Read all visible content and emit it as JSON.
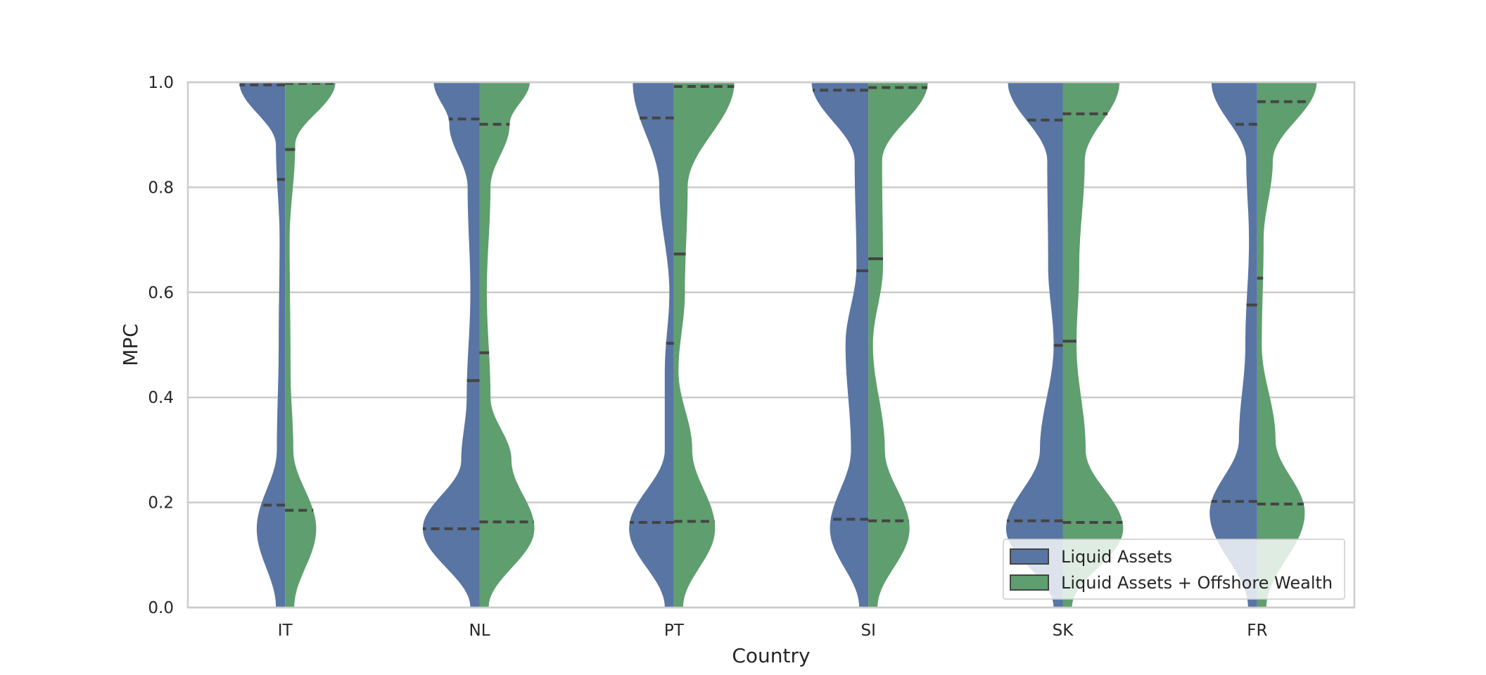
{
  "chart_data": {
    "type": "violin",
    "split": true,
    "title": "",
    "xlabel": "Country",
    "ylabel": "MPC",
    "ylim": [
      0.0,
      1.0
    ],
    "yticks": [
      "0.0",
      "0.2",
      "0.4",
      "0.6",
      "0.8",
      "1.0"
    ],
    "grid": true,
    "legend_position": "lower-right",
    "categories": [
      "IT",
      "NL",
      "PT",
      "SI",
      "SK",
      "FR"
    ],
    "series": [
      {
        "name": "Liquid Assets",
        "color": "#5875a4",
        "quartiles": [
          [
            0.195,
            0.815,
            0.995
          ],
          [
            0.15,
            0.432,
            0.93
          ],
          [
            0.162,
            0.503,
            0.932
          ],
          [
            0.168,
            0.641,
            0.985
          ],
          [
            0.165,
            0.499,
            0.928
          ],
          [
            0.202,
            0.576,
            0.92
          ]
        ],
        "density_peaks": [
          [
            [
              0.0,
              0.1
            ],
            [
              0.15,
              0.31
            ],
            [
              0.3,
              0.09
            ],
            [
              0.5,
              0.07
            ],
            [
              0.7,
              0.06
            ],
            [
              0.88,
              0.1
            ],
            [
              1.0,
              0.5
            ]
          ],
          [
            [
              0.0,
              0.1
            ],
            [
              0.15,
              0.62
            ],
            [
              0.28,
              0.2
            ],
            [
              0.4,
              0.14
            ],
            [
              0.6,
              0.1
            ],
            [
              0.8,
              0.13
            ],
            [
              0.92,
              0.33
            ],
            [
              1.0,
              0.5
            ]
          ],
          [
            [
              0.0,
              0.1
            ],
            [
              0.15,
              0.49
            ],
            [
              0.3,
              0.1
            ],
            [
              0.45,
              0.1
            ],
            [
              0.6,
              0.05
            ],
            [
              0.8,
              0.16
            ],
            [
              1.0,
              0.45
            ]
          ],
          [
            [
              0.0,
              0.1
            ],
            [
              0.15,
              0.42
            ],
            [
              0.3,
              0.19
            ],
            [
              0.5,
              0.25
            ],
            [
              0.65,
              0.13
            ],
            [
              0.85,
              0.15
            ],
            [
              1.0,
              0.62
            ]
          ],
          [
            [
              0.0,
              0.1
            ],
            [
              0.15,
              0.62
            ],
            [
              0.3,
              0.25
            ],
            [
              0.5,
              0.1
            ],
            [
              0.65,
              0.16
            ],
            [
              0.85,
              0.17
            ],
            [
              1.0,
              0.6
            ]
          ],
          [
            [
              0.0,
              0.1
            ],
            [
              0.18,
              0.52
            ],
            [
              0.32,
              0.2
            ],
            [
              0.5,
              0.13
            ],
            [
              0.7,
              0.09
            ],
            [
              0.85,
              0.12
            ],
            [
              1.0,
              0.5
            ]
          ]
        ]
      },
      {
        "name": "Liquid Assets + Offshore Wealth",
        "color": "#5f9e6e",
        "quartiles": [
          [
            0.185,
            0.872,
            0.998
          ],
          [
            0.163,
            0.485,
            0.92
          ],
          [
            0.164,
            0.673,
            0.992
          ],
          [
            0.165,
            0.664,
            0.99
          ],
          [
            0.162,
            0.507,
            0.94
          ],
          [
            0.197,
            0.627,
            0.963
          ]
        ],
        "density_peaks": [
          [
            [
              0.0,
              0.1
            ],
            [
              0.15,
              0.34
            ],
            [
              0.3,
              0.09
            ],
            [
              0.45,
              0.06
            ],
            [
              0.7,
              0.05
            ],
            [
              0.88,
              0.11
            ],
            [
              1.0,
              0.55
            ]
          ],
          [
            [
              0.0,
              0.1
            ],
            [
              0.15,
              0.6
            ],
            [
              0.28,
              0.35
            ],
            [
              0.4,
              0.12
            ],
            [
              0.6,
              0.08
            ],
            [
              0.8,
              0.12
            ],
            [
              0.92,
              0.33
            ],
            [
              1.0,
              0.55
            ]
          ],
          [
            [
              0.0,
              0.1
            ],
            [
              0.15,
              0.45
            ],
            [
              0.3,
              0.2
            ],
            [
              0.45,
              0.05
            ],
            [
              0.6,
              0.12
            ],
            [
              0.8,
              0.15
            ],
            [
              1.0,
              0.66
            ]
          ],
          [
            [
              0.0,
              0.1
            ],
            [
              0.15,
              0.45
            ],
            [
              0.3,
              0.18
            ],
            [
              0.5,
              0.05
            ],
            [
              0.65,
              0.16
            ],
            [
              0.85,
              0.15
            ],
            [
              1.0,
              0.65
            ]
          ],
          [
            [
              0.0,
              0.1
            ],
            [
              0.15,
              0.66
            ],
            [
              0.3,
              0.25
            ],
            [
              0.5,
              0.15
            ],
            [
              0.65,
              0.18
            ],
            [
              0.85,
              0.24
            ],
            [
              1.0,
              0.62
            ]
          ],
          [
            [
              0.0,
              0.1
            ],
            [
              0.18,
              0.52
            ],
            [
              0.32,
              0.2
            ],
            [
              0.5,
              0.05
            ],
            [
              0.7,
              0.07
            ],
            [
              0.85,
              0.17
            ],
            [
              1.0,
              0.65
            ]
          ]
        ]
      }
    ]
  }
}
